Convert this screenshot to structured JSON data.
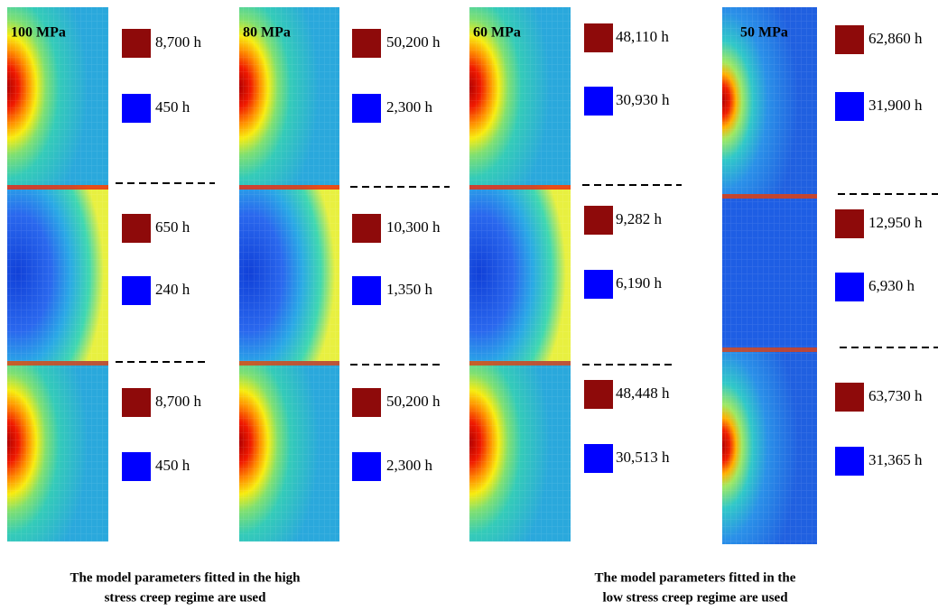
{
  "panels": [
    {
      "stress": "100 MPa",
      "sections": [
        {
          "high": "8,700 h",
          "low": "450 h"
        },
        {
          "high": "650 h",
          "low": "240 h"
        },
        {
          "high": "8,700 h",
          "low": "450 h"
        }
      ]
    },
    {
      "stress": "80 MPa",
      "sections": [
        {
          "high": "50,200 h",
          "low": "2,300 h"
        },
        {
          "high": "10,300 h",
          "low": "1,350 h"
        },
        {
          "high": "50,200 h",
          "low": "2,300 h"
        }
      ]
    },
    {
      "stress": "60 MPa",
      "sections": [
        {
          "high": "48,110 h",
          "low": "30,930 h"
        },
        {
          "high": "9,282 h",
          "low": "6,190 h"
        },
        {
          "high": "48,448 h",
          "low": "30,513 h"
        }
      ]
    },
    {
      "stress": "50 MPa",
      "sections": [
        {
          "high": "62,860 h",
          "low": "31,900 h"
        },
        {
          "high": "12,950 h",
          "low": "6,930 h"
        },
        {
          "high": "63,730 h",
          "low": "31,365 h"
        }
      ]
    }
  ],
  "captions": [
    [
      "The model parameters fitted in the high",
      "stress creep regime are used"
    ],
    [
      "The model parameters fitted in the",
      "low stress creep regime are used"
    ]
  ]
}
